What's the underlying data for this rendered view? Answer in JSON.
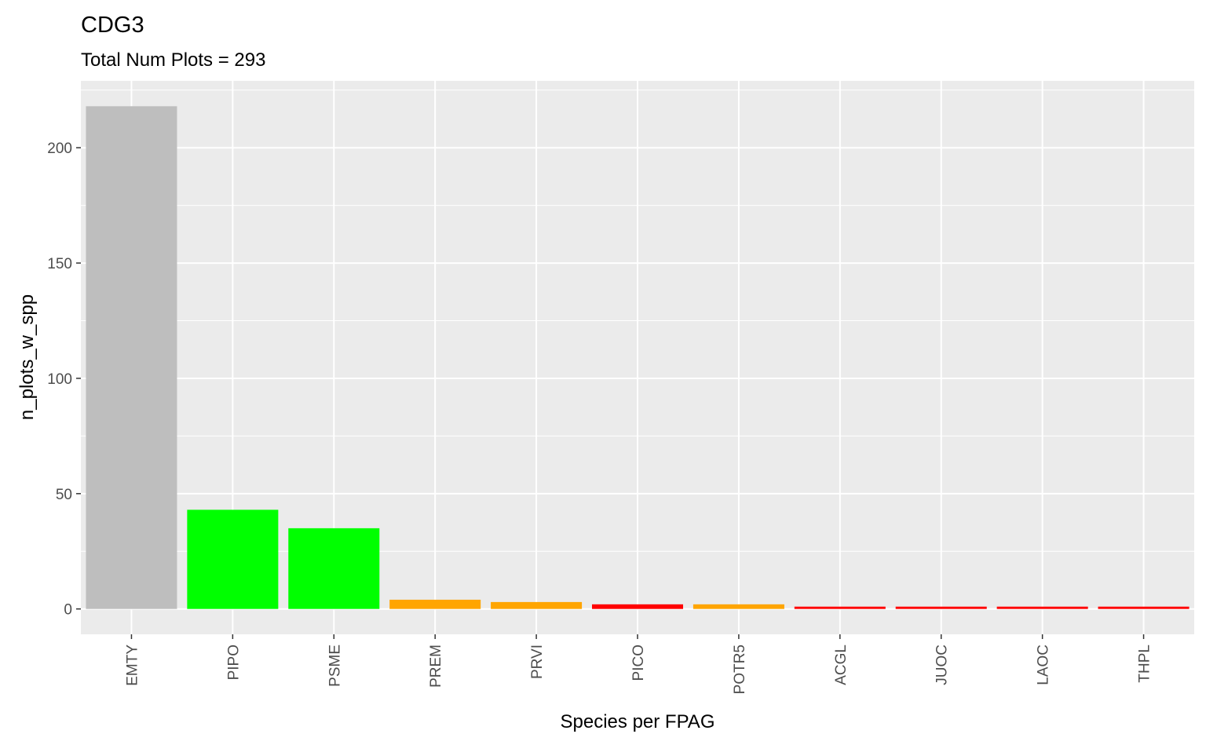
{
  "chart_data": {
    "type": "bar",
    "title": "CDG3",
    "subtitle": "Total Num Plots = 293",
    "xlabel": "Species per FPAG",
    "ylabel": "n_plots_w_spp",
    "categories": [
      "EMTY",
      "PIPO",
      "PSME",
      "PREM",
      "PRVI",
      "PICO",
      "POTR5",
      "ACGL",
      "JUOC",
      "LAOC",
      "THPL"
    ],
    "values": [
      218,
      43,
      35,
      4,
      3,
      2,
      2,
      1,
      1,
      1,
      1
    ],
    "colors": [
      "#bebebe",
      "#00ff00",
      "#00ff00",
      "#ffa500",
      "#ffa500",
      "#ff0000",
      "#ffa500",
      "#ff0000",
      "#ff0000",
      "#ff0000",
      "#ff0000"
    ],
    "ylim": [
      -11,
      229
    ],
    "yticks": [
      0,
      50,
      100,
      150,
      200
    ],
    "grid": true,
    "panel_background": "#ebebeb",
    "legend": "none"
  }
}
